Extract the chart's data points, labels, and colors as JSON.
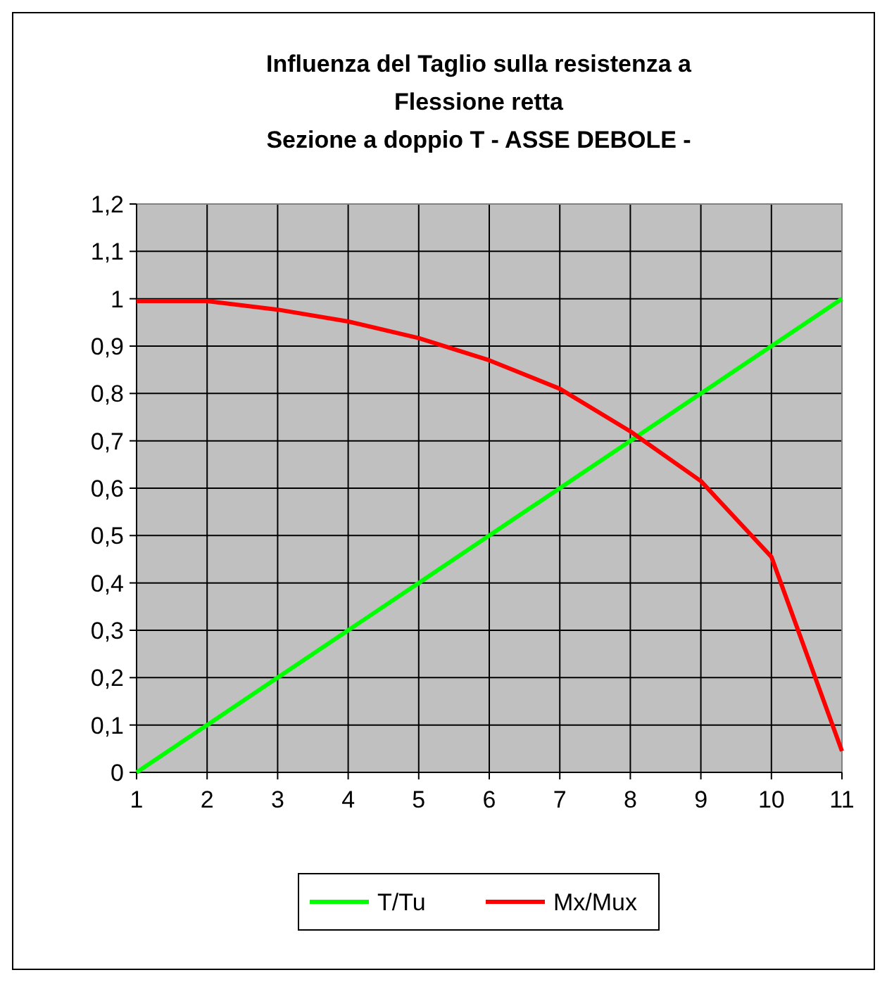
{
  "chart_data": {
    "type": "line",
    "title": "Influenza del Taglio sulla resistenza a\nFlessione retta\nSezione a doppio T - ASSE DEBOLE -",
    "x": [
      1,
      2,
      3,
      4,
      5,
      6,
      7,
      8,
      9,
      10,
      11
    ],
    "series": [
      {
        "name": "T/Tu",
        "color": "#00ff00",
        "values": [
          0,
          0.1,
          0.2,
          0.3,
          0.4,
          0.5,
          0.6,
          0.7,
          0.8,
          0.9,
          1
        ]
      },
      {
        "name": "Mx/Mux",
        "color": "#ff0000",
        "values": [
          0.995,
          0.995,
          0.977,
          0.952,
          0.917,
          0.87,
          0.81,
          0.72,
          0.615,
          0.455,
          0.045
        ]
      }
    ],
    "xlim": [
      1,
      11
    ],
    "xticks": [
      1,
      2,
      3,
      4,
      5,
      6,
      7,
      8,
      9,
      10,
      11
    ],
    "ylim": [
      0,
      1.2
    ],
    "yticks": [
      {
        "value": 0,
        "label": "0"
      },
      {
        "value": 0.1,
        "label": "0,1"
      },
      {
        "value": 0.2,
        "label": "0,2"
      },
      {
        "value": 0.3,
        "label": "0,3"
      },
      {
        "value": 0.4,
        "label": "0,4"
      },
      {
        "value": 0.5,
        "label": "0,5"
      },
      {
        "value": 0.6,
        "label": "0,6"
      },
      {
        "value": 0.7,
        "label": "0,7"
      },
      {
        "value": 0.8,
        "label": "0,8"
      },
      {
        "value": 0.9,
        "label": "0,9"
      },
      {
        "value": 1,
        "label": "1"
      },
      {
        "value": 1.1,
        "label": "1,1"
      },
      {
        "value": 1.2,
        "label": "1,2"
      }
    ],
    "grid": true,
    "legend": "bottom",
    "marker": "none",
    "line_style": "solid"
  }
}
